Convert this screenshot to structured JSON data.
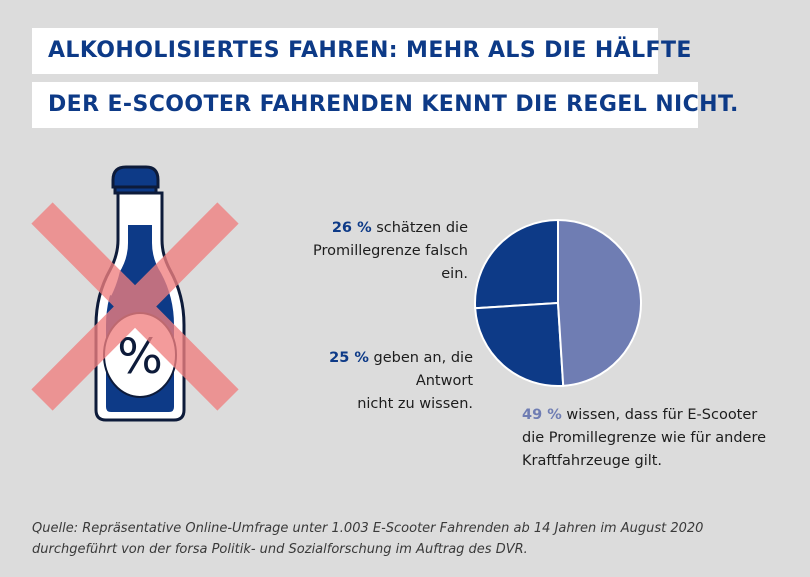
{
  "title": {
    "line1": "ALKOHOLISIERTES FAHREN: MEHR ALS DIE HÄLFTE",
    "line2": "DER E-SCOOTER FAHRENDEN KENNT DIE REGEL NICHT."
  },
  "illustration": {
    "bottle_label": "%",
    "icon": "bottle-crossed-out-icon"
  },
  "annotations": [
    {
      "value_text": "26 %",
      "text_line1": " schätzen die",
      "text_line2": "Promillegrenze falsch ein.",
      "color": "#0d3a87"
    },
    {
      "value_text": "25 %",
      "text_line1": " geben an, die Antwort",
      "text_line2": "nicht zu wissen.",
      "color": "#0d3a87"
    },
    {
      "value_text": "49 %",
      "text_line1": " wissen, dass für E-Scooter",
      "text_line2": "die Promillegrenze wie für andere",
      "text_line3": "Kraftfahrzeuge gilt.",
      "color": "#6f7db3"
    }
  ],
  "source": {
    "line1": "Quelle: Repräsentative Online-Umfrage unter 1.003 E-Scooter Fahrenden ab 14 Jahren im August 2020",
    "line2": "durchgeführt von der forsa Politik- und Sozialforschung im Auftrag des DVR."
  },
  "colors": {
    "dark_blue": "#0d3a87",
    "light_blue": "#6f7db3",
    "cross_red": "#f07f7f",
    "background": "#dcdcdc"
  },
  "chart_data": {
    "type": "pie",
    "title": "",
    "slices": [
      {
        "label": "schätzen die Promillegrenze falsch ein",
        "value": 26,
        "color": "#0d3a87"
      },
      {
        "label": "geben an, die Antwort nicht zu wissen",
        "value": 25,
        "color": "#0d3a87"
      },
      {
        "label": "wissen, dass für E-Scooter die Promillegrenze wie für andere Kraftfahrzeuge gilt",
        "value": 49,
        "color": "#6f7db3"
      }
    ]
  }
}
